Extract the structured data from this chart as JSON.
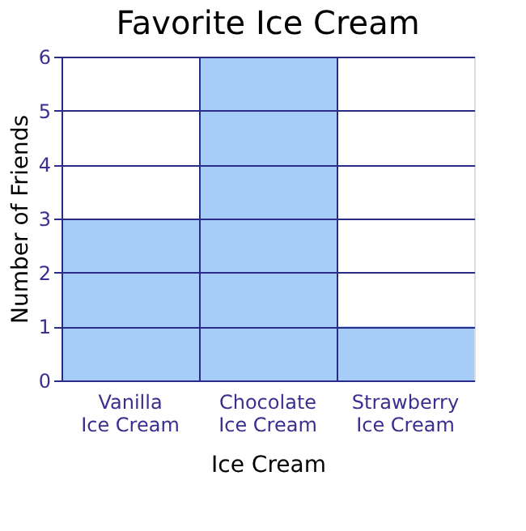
{
  "chart_data": {
    "type": "bar",
    "title": "Favorite Ice Cream",
    "xlabel": "Ice Cream",
    "ylabel": "Number of Friends",
    "categories": [
      "Vanilla\nIce Cream",
      "Chocolate\nIce Cream",
      "Strawberry\nIce Cream"
    ],
    "values": [
      3,
      6,
      1
    ],
    "color": "#a6cdf7",
    "ylim": [
      0,
      6
    ],
    "yticks": [
      0,
      1,
      2,
      3,
      4,
      5,
      6
    ],
    "grid": true
  }
}
